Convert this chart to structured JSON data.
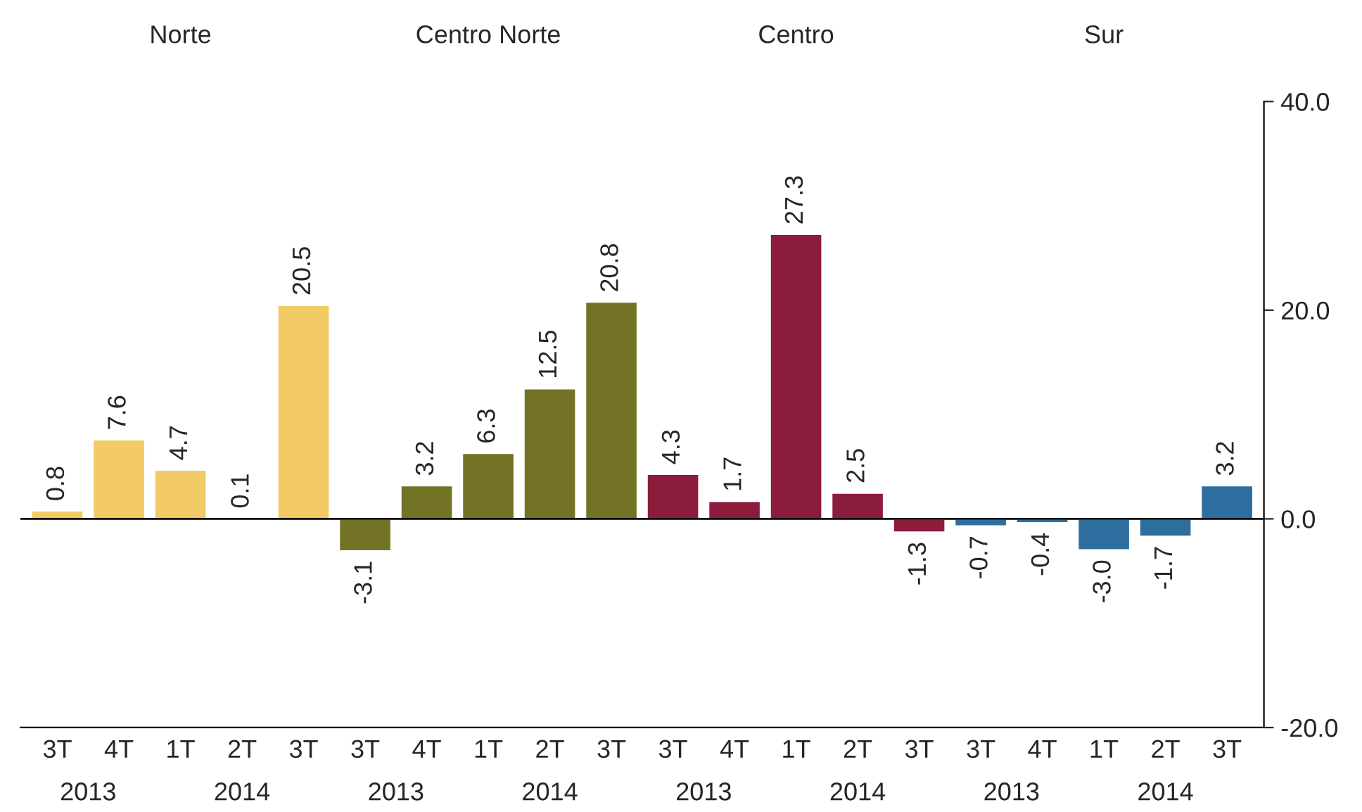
{
  "chart_data": {
    "type": "bar",
    "categories": [
      "3T",
      "4T",
      "1T",
      "2T",
      "3T",
      "3T",
      "4T",
      "1T",
      "2T",
      "3T",
      "3T",
      "4T",
      "1T",
      "2T",
      "3T",
      "3T",
      "4T",
      "1T",
      "2T",
      "3T"
    ],
    "series": [
      {
        "color": "#f2cb66",
        "values": [
          0.8,
          7.6,
          4.7,
          0.1,
          20.5,
          null,
          null,
          null,
          null,
          null,
          null,
          null,
          null,
          null,
          null,
          null,
          null,
          null,
          null,
          null
        ],
        "value_labels": [
          "0.8",
          "7.6",
          "4.7",
          "0.1",
          "20.5",
          null,
          null,
          null,
          null,
          null,
          null,
          null,
          null,
          null,
          null,
          null,
          null,
          null,
          null,
          null
        ]
      },
      {
        "color": "#737326",
        "values": [
          null,
          null,
          null,
          null,
          null,
          -3.1,
          3.2,
          6.3,
          12.5,
          20.8,
          null,
          null,
          null,
          null,
          null,
          null,
          null,
          null,
          null,
          null
        ],
        "value_labels": [
          null,
          null,
          null,
          null,
          null,
          "-3.1",
          "3.2",
          "6.3",
          "12.5",
          "20.8",
          null,
          null,
          null,
          null,
          null,
          null,
          null,
          null,
          null,
          null
        ]
      },
      {
        "color": "#8c1c3c",
        "values": [
          null,
          null,
          null,
          null,
          null,
          null,
          null,
          null,
          null,
          null,
          4.3,
          1.7,
          27.3,
          2.5,
          -1.3,
          null,
          null,
          null,
          null,
          null
        ],
        "value_labels": [
          null,
          null,
          null,
          null,
          null,
          null,
          null,
          null,
          null,
          null,
          "4.3",
          "1.7",
          "27.3",
          "2.5",
          "-1.3",
          null,
          null,
          null,
          null,
          null
        ]
      },
      {
        "color": "#2e6e9e",
        "values": [
          null,
          null,
          null,
          null,
          null,
          null,
          null,
          null,
          null,
          null,
          null,
          null,
          null,
          null,
          null,
          -0.7,
          -0.4,
          -3.0,
          -1.7,
          3.2
        ],
        "value_labels": [
          null,
          null,
          null,
          null,
          null,
          null,
          null,
          null,
          null,
          null,
          null,
          null,
          null,
          null,
          null,
          "-0.7",
          "-0.4",
          "-3.0",
          "-1.7",
          "3.2"
        ]
      }
    ],
    "annotations": [
      "Norte",
      "Centro Norte",
      "Centro",
      "Sur",
      "2013",
      "2014",
      "2013",
      "2014",
      "2013",
      "2014",
      "2013",
      "2014"
    ],
    "ylim": [
      -20,
      40
    ],
    "yticks": [
      {
        "value": -20,
        "label": "-20.0"
      },
      {
        "value": 0,
        "label": "0.0"
      },
      {
        "value": 20,
        "label": "20.0"
      },
      {
        "value": 40,
        "label": "40.0"
      }
    ],
    "ref_lines": [
      {
        "axis": "y",
        "value": 0,
        "color": "#000000"
      }
    ],
    "grid": false,
    "legend": false
  }
}
